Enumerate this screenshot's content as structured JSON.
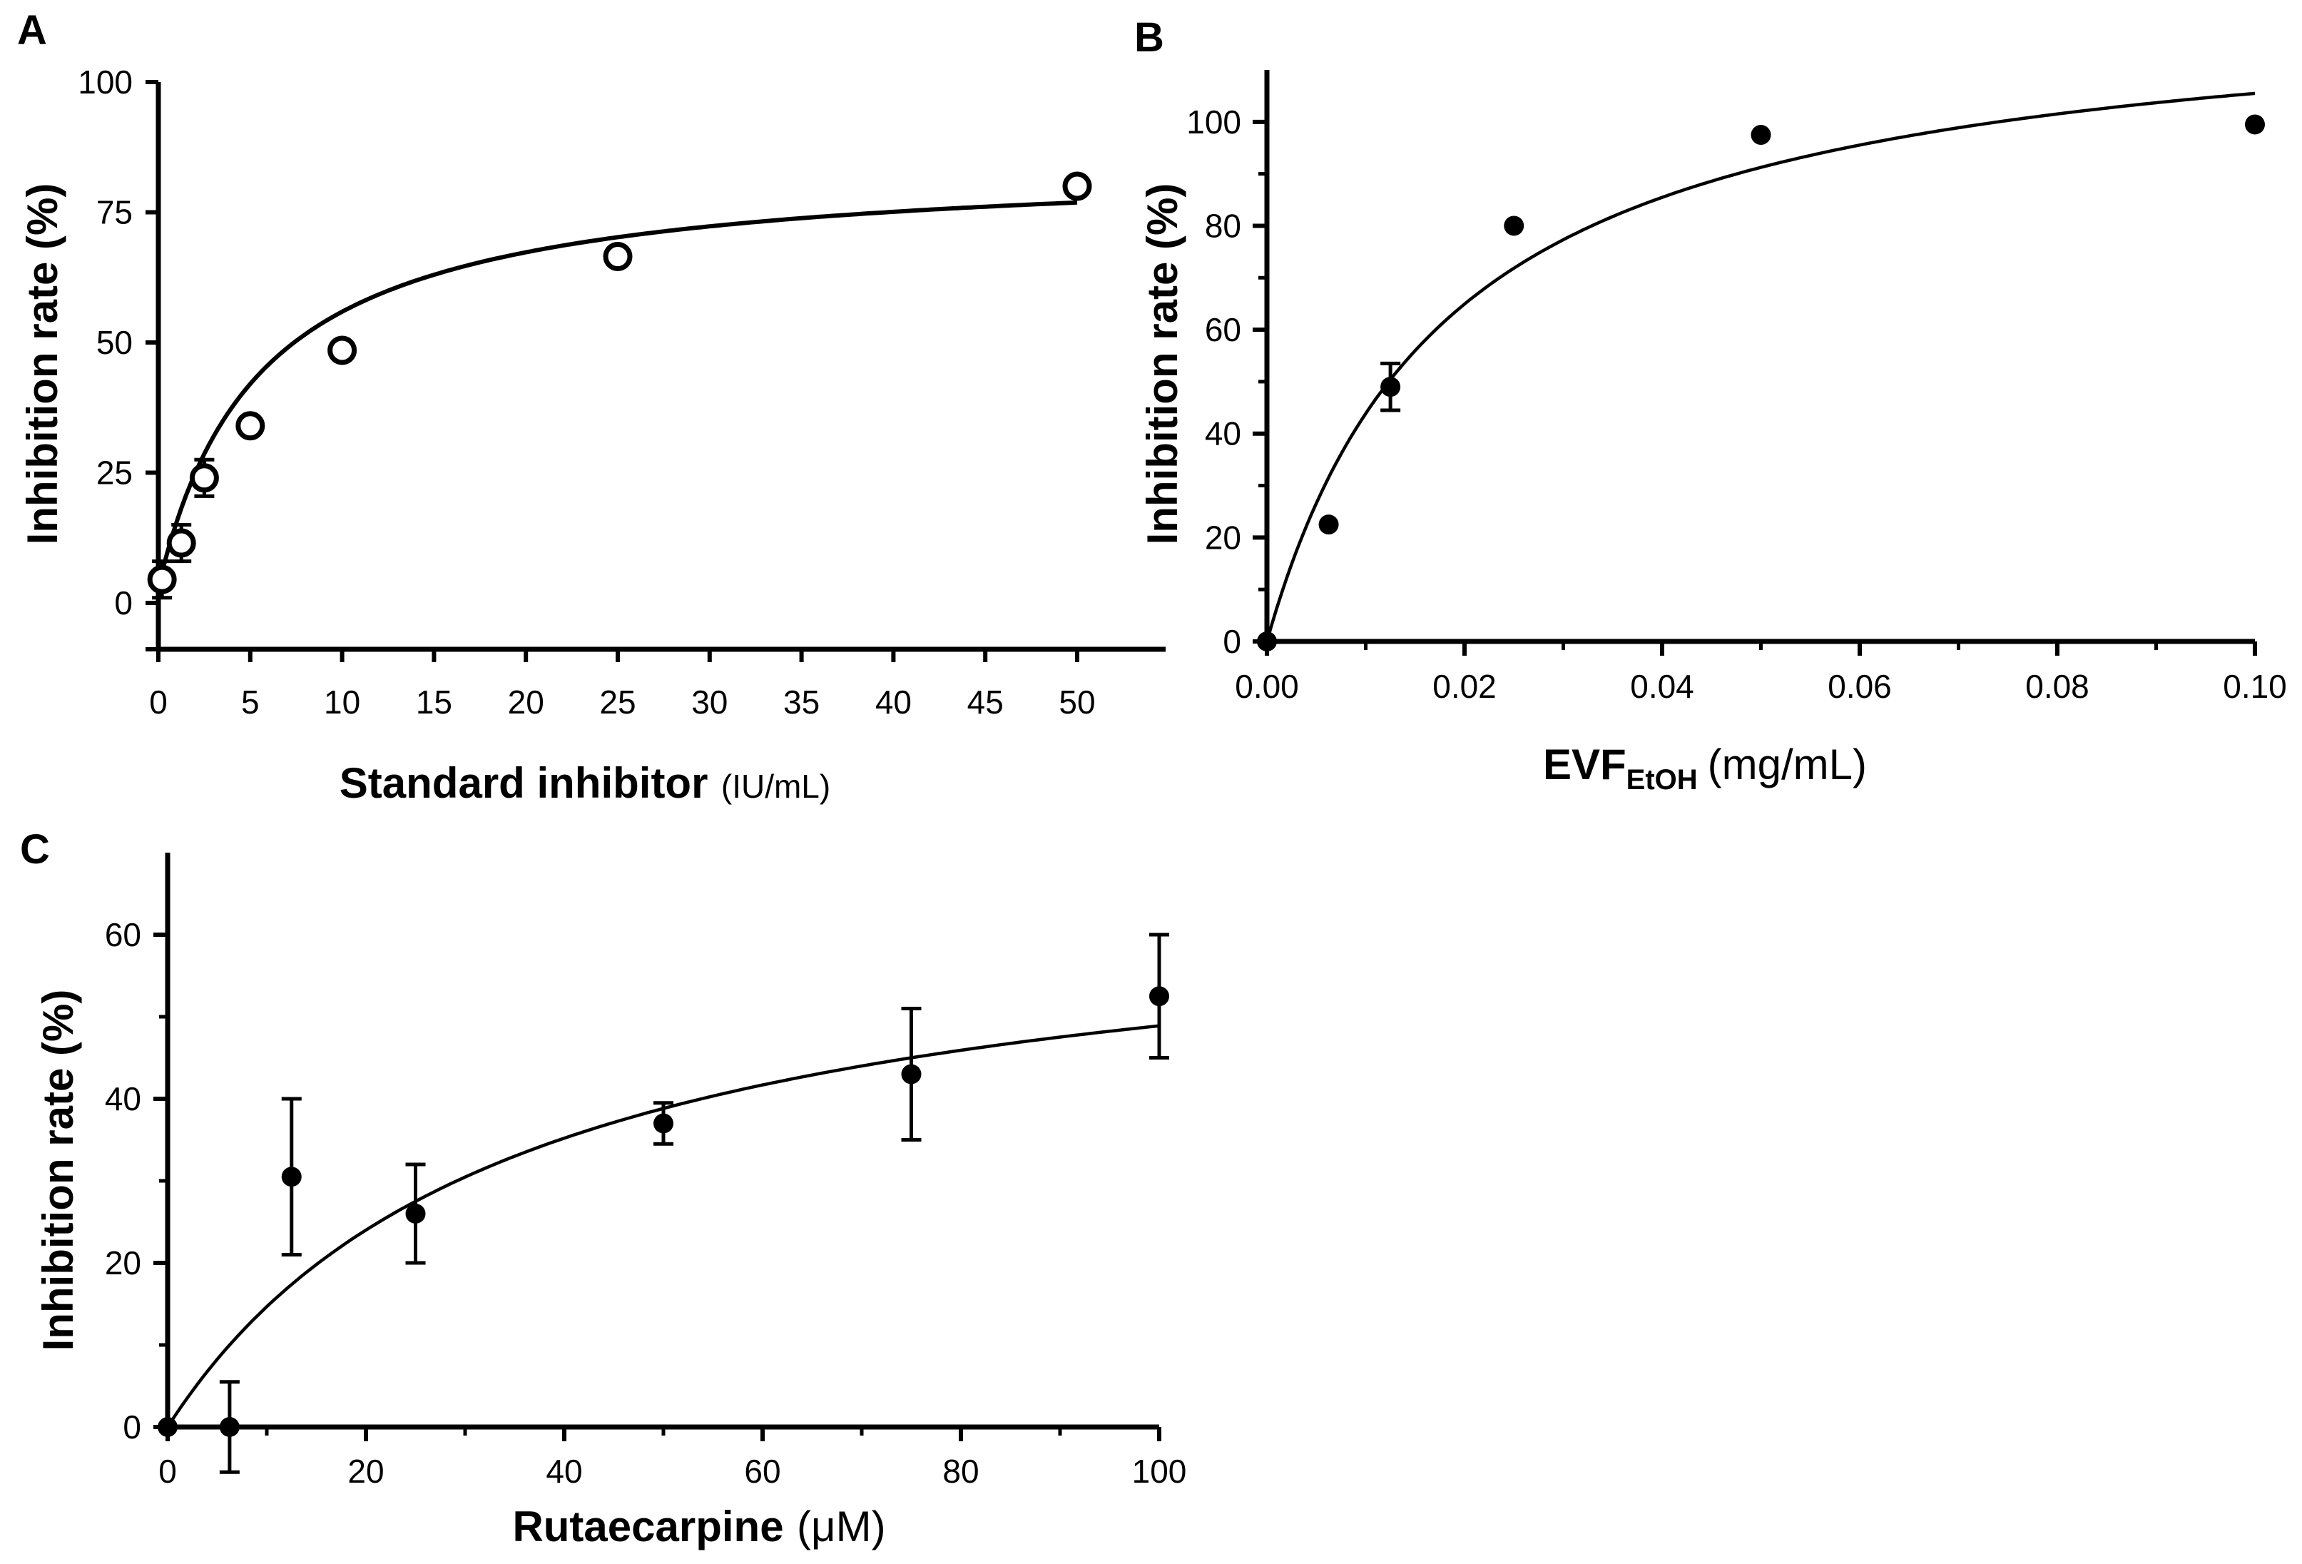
{
  "chart_data": [
    {
      "panel": "A",
      "type": "scatter",
      "marker": "open-circle",
      "xlabel_bold": "Standard inhibitor",
      "xlabel_unit": "(IU/mL)",
      "ylabel": "Inhibition rate (%)",
      "xlim": [
        0,
        54
      ],
      "ylim": [
        -9,
        100
      ],
      "xticks": [
        0,
        5,
        10,
        15,
        20,
        25,
        30,
        35,
        40,
        45,
        50
      ],
      "xtick_labels": [
        "0",
        "5",
        "10",
        "15",
        "20",
        "25",
        "30",
        "35",
        "40",
        "45",
        "50"
      ],
      "yticks": [
        0,
        25,
        50,
        75,
        100
      ],
      "ytick_labels": [
        "0",
        "25",
        "50",
        "75",
        "100"
      ],
      "x": [
        0.2,
        1.25,
        2.5,
        5,
        10,
        25,
        50
      ],
      "y": [
        4.5,
        11.5,
        24,
        34,
        48.5,
        66.5,
        80
      ],
      "err": [
        3.5,
        3.5,
        3.5,
        1.5,
        1.5,
        1.5,
        1.5
      ],
      "fit": {
        "model": "saturation",
        "vmax": 85,
        "k": 5.5,
        "offset": 3
      }
    },
    {
      "panel": "B",
      "type": "scatter",
      "marker": "filled-circle",
      "xlabel_main": "EVF",
      "xlabel_sub": "EtOH",
      "xlabel_unit": "(mg/mL)",
      "ylabel": "Inhibition rate (%)",
      "xlim": [
        0,
        0.1
      ],
      "ylim": [
        0,
        110
      ],
      "xticks": [
        0,
        0.02,
        0.04,
        0.06,
        0.08,
        0.1
      ],
      "xtick_labels": [
        "0.00",
        "0.02",
        "0.04",
        "0.06",
        "0.08",
        "0.10"
      ],
      "yticks": [
        0,
        20,
        40,
        60,
        80,
        100
      ],
      "ytick_labels": [
        "0",
        "20",
        "40",
        "60",
        "80",
        "100"
      ],
      "x": [
        0,
        0.00625,
        0.0125,
        0.025,
        0.05,
        0.1
      ],
      "y": [
        0,
        22.5,
        49,
        80,
        97.5,
        99.5
      ],
      "err": [
        0,
        0,
        4.5,
        0,
        0,
        0
      ],
      "fit": {
        "model": "saturation",
        "vmax": 125,
        "k": 0.0185,
        "offset": 0
      }
    },
    {
      "panel": "C",
      "type": "scatter",
      "marker": "filled-circle",
      "xlabel_main": "Rutaecarpine",
      "xlabel_unit": "(μM)",
      "ylabel": "Inhibition rate (%)",
      "xlim": [
        0,
        100
      ],
      "ylim": [
        0,
        70
      ],
      "xticks": [
        0,
        20,
        40,
        60,
        80,
        100
      ],
      "xtick_labels": [
        "0",
        "20",
        "40",
        "60",
        "80",
        "100"
      ],
      "yticks": [
        0,
        20,
        40,
        60
      ],
      "ytick_labels": [
        "0",
        "20",
        "40",
        "60"
      ],
      "x": [
        0,
        6.25,
        12.5,
        25,
        50,
        75,
        100
      ],
      "y": [
        0,
        0,
        30.5,
        26,
        37,
        43,
        52.5
      ],
      "err": [
        0,
        5.5,
        9.5,
        6,
        2.5,
        8,
        7.5
      ],
      "fit": {
        "model": "saturation",
        "vmax": 66,
        "k": 35,
        "offset": 0
      }
    }
  ]
}
